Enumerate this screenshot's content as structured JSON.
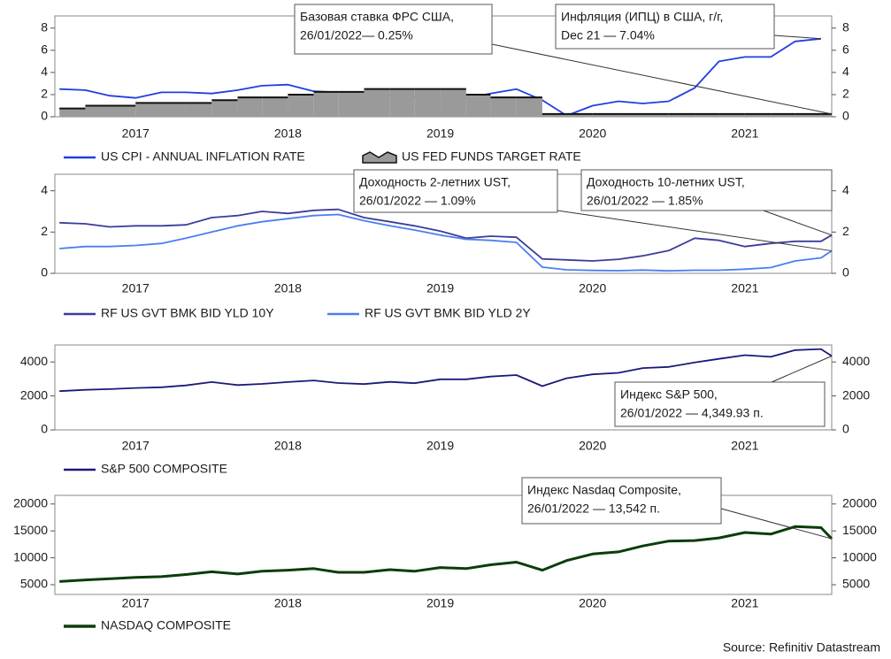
{
  "source": "Source: Refinitiv Datastream",
  "chart_data": [
    {
      "type": "line",
      "x": [
        2017.0,
        2017.17,
        2017.33,
        2017.5,
        2017.67,
        2017.83,
        2018.0,
        2018.17,
        2018.33,
        2018.5,
        2018.67,
        2018.83,
        2019.0,
        2019.17,
        2019.33,
        2019.5,
        2019.67,
        2019.83,
        2020.0,
        2020.17,
        2020.33,
        2020.5,
        2020.67,
        2020.83,
        2021.0,
        2021.17,
        2021.33,
        2021.5,
        2021.67,
        2021.83,
        2022.0,
        2022.07
      ],
      "xlim": [
        2016.97,
        2022.07
      ],
      "xticks": [
        {
          "value": 2017.5,
          "label": "2017"
        },
        {
          "value": 2018.5,
          "label": "2018"
        },
        {
          "value": 2019.5,
          "label": "2019"
        },
        {
          "value": 2020.5,
          "label": "2020"
        },
        {
          "value": 2021.5,
          "label": "2021"
        }
      ],
      "ylim": [
        0,
        9.1
      ],
      "yticks": [
        0,
        2,
        4,
        6,
        8
      ],
      "y2lim": [
        0,
        9.1
      ],
      "y2ticks": [
        0,
        2,
        4,
        6,
        8
      ],
      "series": [
        {
          "name": "US CPI - ANNUAL INFLATION RATE",
          "color": "#1f3fe0",
          "values": [
            2.5,
            2.4,
            1.9,
            1.7,
            2.2,
            2.2,
            2.1,
            2.4,
            2.8,
            2.9,
            2.3,
            2.2,
            1.6,
            1.9,
            1.8,
            1.8,
            1.7,
            2.1,
            2.5,
            1.5,
            0.1,
            1.0,
            1.4,
            1.2,
            1.4,
            2.6,
            5.0,
            5.4,
            5.4,
            6.8,
            7.04,
            null
          ]
        },
        {
          "name": "US FED FUNDS TARGET RATE",
          "color": "#9a9a9a",
          "type": "step-area",
          "values": [
            0.75,
            1.0,
            1.0,
            1.25,
            1.25,
            1.25,
            1.5,
            1.75,
            1.75,
            2.0,
            2.25,
            2.25,
            2.5,
            2.5,
            2.5,
            2.5,
            2.0,
            1.75,
            1.75,
            0.25,
            0.25,
            0.25,
            0.25,
            0.25,
            0.25,
            0.25,
            0.25,
            0.25,
            0.25,
            0.25,
            0.25,
            0.25
          ]
        }
      ],
      "annotations": [
        {
          "text": [
            "Базовая ставка ФРС США,",
            "26/01/2022— 0.25%"
          ]
        },
        {
          "text": [
            "Инфляция (ИПЦ) в США, г/г,",
            "Dec 21 — 7.04%"
          ]
        }
      ]
    },
    {
      "type": "line",
      "x": [
        2017.0,
        2017.17,
        2017.33,
        2017.5,
        2017.67,
        2017.83,
        2018.0,
        2018.17,
        2018.33,
        2018.5,
        2018.67,
        2018.83,
        2019.0,
        2019.17,
        2019.33,
        2019.5,
        2019.67,
        2019.83,
        2020.0,
        2020.17,
        2020.33,
        2020.5,
        2020.67,
        2020.83,
        2021.0,
        2021.17,
        2021.33,
        2021.5,
        2021.67,
        2021.83,
        2022.0,
        2022.07
      ],
      "xlim": [
        2016.97,
        2022.07
      ],
      "xticks": [
        {
          "value": 2017.5,
          "label": "2017"
        },
        {
          "value": 2018.5,
          "label": "2018"
        },
        {
          "value": 2019.5,
          "label": "2019"
        },
        {
          "value": 2020.5,
          "label": "2020"
        },
        {
          "value": 2021.5,
          "label": "2021"
        }
      ],
      "ylim": [
        0,
        4.8
      ],
      "yticks": [
        0,
        2,
        4
      ],
      "y2lim": [
        0,
        4.8
      ],
      "y2ticks": [
        0,
        2,
        4
      ],
      "series": [
        {
          "name": "RF US GVT BMK BID YLD 10Y",
          "color": "#3c3c9c",
          "values": [
            2.45,
            2.4,
            2.25,
            2.3,
            2.3,
            2.35,
            2.7,
            2.8,
            3.0,
            2.9,
            3.05,
            3.1,
            2.7,
            2.5,
            2.3,
            2.05,
            1.7,
            1.8,
            1.75,
            0.7,
            0.65,
            0.6,
            0.68,
            0.85,
            1.1,
            1.7,
            1.6,
            1.3,
            1.45,
            1.55,
            1.55,
            1.85
          ]
        },
        {
          "name": "RF US GVT BMK BID YLD 2Y",
          "color": "#4a7ef0",
          "values": [
            1.2,
            1.3,
            1.3,
            1.35,
            1.45,
            1.7,
            2.0,
            2.3,
            2.5,
            2.65,
            2.8,
            2.85,
            2.55,
            2.3,
            2.1,
            1.85,
            1.65,
            1.6,
            1.5,
            0.3,
            0.17,
            0.14,
            0.13,
            0.16,
            0.12,
            0.15,
            0.15,
            0.2,
            0.28,
            0.6,
            0.75,
            1.09
          ]
        }
      ],
      "annotations": [
        {
          "text": [
            "Доходность 2-летних UST,",
            "26/01/2022 — 1.09%"
          ]
        },
        {
          "text": [
            "Доходность 10-летних UST,",
            "26/01/2022 — 1.85%"
          ]
        }
      ]
    },
    {
      "type": "line",
      "x": [
        2017.0,
        2017.17,
        2017.33,
        2017.5,
        2017.67,
        2017.83,
        2018.0,
        2018.17,
        2018.33,
        2018.5,
        2018.67,
        2018.83,
        2019.0,
        2019.17,
        2019.33,
        2019.5,
        2019.67,
        2019.83,
        2020.0,
        2020.17,
        2020.33,
        2020.5,
        2020.67,
        2020.83,
        2021.0,
        2021.17,
        2021.33,
        2021.5,
        2021.67,
        2021.83,
        2022.0,
        2022.07
      ],
      "xlim": [
        2016.97,
        2022.07
      ],
      "xticks": [
        {
          "value": 2017.5,
          "label": "2017"
        },
        {
          "value": 2018.5,
          "label": "2018"
        },
        {
          "value": 2019.5,
          "label": "2019"
        },
        {
          "value": 2020.5,
          "label": "2020"
        },
        {
          "value": 2021.5,
          "label": "2021"
        }
      ],
      "ylim": [
        0,
        5000
      ],
      "yticks": [
        0,
        2000,
        4000
      ],
      "y2lim": [
        0,
        5000
      ],
      "y2ticks": [
        0,
        2000,
        4000
      ],
      "series": [
        {
          "name": "S&P 500 COMPOSITE",
          "color": "#1a1a7a",
          "values": [
            2280,
            2360,
            2400,
            2470,
            2510,
            2620,
            2820,
            2640,
            2710,
            2820,
            2910,
            2760,
            2700,
            2830,
            2750,
            2980,
            2980,
            3140,
            3230,
            2580,
            3040,
            3270,
            3360,
            3640,
            3710,
            3970,
            4180,
            4400,
            4300,
            4700,
            4760,
            4349.93
          ]
        }
      ],
      "annotations": [
        {
          "text": [
            "Индекс S&P 500,",
            "26/01/2022 — 4,349.93 п."
          ]
        }
      ]
    },
    {
      "type": "line",
      "x": [
        2017.0,
        2017.17,
        2017.33,
        2017.5,
        2017.67,
        2017.83,
        2018.0,
        2018.17,
        2018.33,
        2018.5,
        2018.67,
        2018.83,
        2019.0,
        2019.17,
        2019.33,
        2019.5,
        2019.67,
        2019.83,
        2020.0,
        2020.17,
        2020.33,
        2020.5,
        2020.67,
        2020.83,
        2021.0,
        2021.17,
        2021.33,
        2021.5,
        2021.67,
        2021.83,
        2022.0,
        2022.07
      ],
      "xlim": [
        2016.97,
        2022.07
      ],
      "xticks": [
        {
          "value": 2017.5,
          "label": "2017"
        },
        {
          "value": 2018.5,
          "label": "2018"
        },
        {
          "value": 2019.5,
          "label": "2019"
        },
        {
          "value": 2020.5,
          "label": "2020"
        },
        {
          "value": 2021.5,
          "label": "2021"
        }
      ],
      "ylim": [
        3200,
        21600
      ],
      "yticks": [
        5000,
        10000,
        15000,
        20000
      ],
      "y2lim": [
        3200,
        21600
      ],
      "y2ticks": [
        5000,
        10000,
        15000,
        20000
      ],
      "series": [
        {
          "name": "NASDAQ COMPOSITE",
          "color": "#0b3d0b",
          "width": 3,
          "values": [
            5600,
            5900,
            6100,
            6350,
            6500,
            6900,
            7400,
            7000,
            7500,
            7700,
            8000,
            7300,
            7300,
            7800,
            7500,
            8200,
            8000,
            8700,
            9200,
            7700,
            9500,
            10700,
            11100,
            12200,
            13100,
            13200,
            13700,
            14700,
            14400,
            15800,
            15600,
            13542
          ]
        }
      ],
      "annotations": [
        {
          "text": [
            "Индекс Nasdaq Composite,",
            "26/01/2022 — 13,542 п."
          ]
        }
      ]
    }
  ]
}
